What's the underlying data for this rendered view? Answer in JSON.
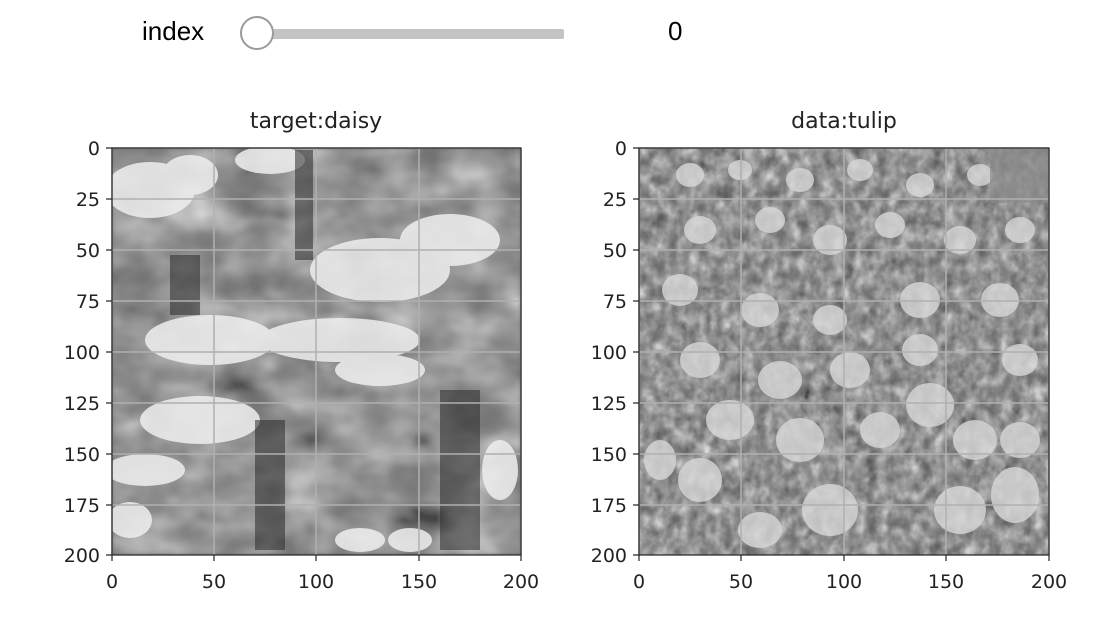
{
  "widget": {
    "label": "index",
    "value": "0",
    "slider_fraction": 0
  },
  "chart_data": [
    {
      "type": "image",
      "title": "target:daisy",
      "xlim": [
        0,
        200
      ],
      "ylim": [
        200,
        0
      ],
      "xticks": [
        "0",
        "50",
        "100",
        "150",
        "200"
      ],
      "yticks": [
        "0",
        "25",
        "50",
        "75",
        "100",
        "125",
        "150",
        "175",
        "200"
      ],
      "grid": true,
      "colormap": "grayscale"
    },
    {
      "type": "image",
      "title": "data:tulip",
      "xlim": [
        0,
        200
      ],
      "ylim": [
        200,
        0
      ],
      "xticks": [
        "0",
        "50",
        "100",
        "150",
        "200"
      ],
      "yticks": [
        "0",
        "25",
        "50",
        "75",
        "100",
        "125",
        "150",
        "175",
        "200"
      ],
      "grid": true,
      "colormap": "grayscale"
    }
  ],
  "colors": {
    "slider_track": "#c4c4c4",
    "slider_handle_border": "#9a9a9a",
    "grid": "#b0b0b0"
  }
}
